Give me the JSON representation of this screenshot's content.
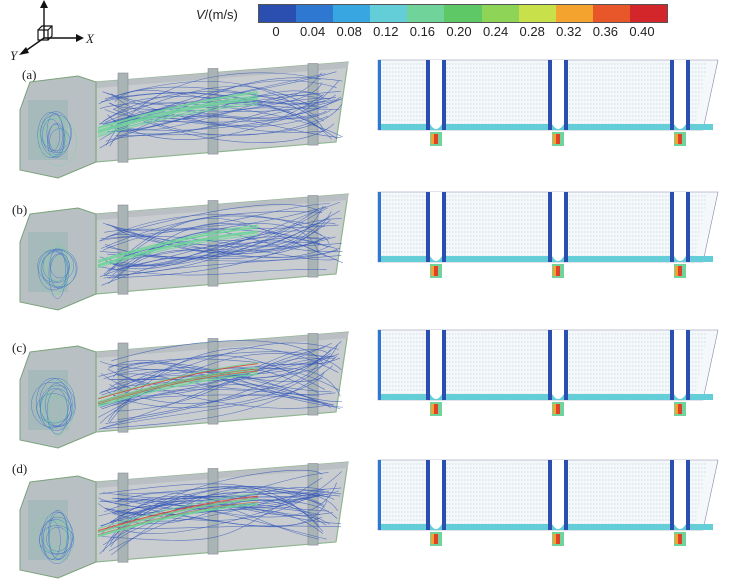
{
  "colorbar": {
    "variable": "V",
    "unit": "/(m/s)",
    "ticks": [
      "0",
      "0.04",
      "0.08",
      "0.12",
      "0.16",
      "0.20",
      "0.24",
      "0.28",
      "0.32",
      "0.36",
      "0.40"
    ],
    "colors": [
      "#2a4fb0",
      "#2e78d2",
      "#38a6e0",
      "#63cdd8",
      "#6fd39a",
      "#5fc866",
      "#8dd457",
      "#c8e04a",
      "#f3a32e",
      "#e8572a",
      "#d3262a"
    ]
  },
  "axes": {
    "x": "X",
    "y": "Y"
  },
  "rows": [
    {
      "label": "(a)"
    },
    {
      "label": "(b)"
    },
    {
      "label": "(c)"
    },
    {
      "label": "(d)"
    }
  ]
}
